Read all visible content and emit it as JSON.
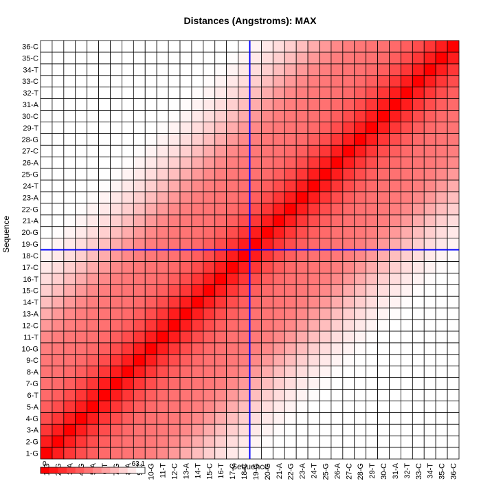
{
  "chart_data": {
    "type": "heatmap",
    "title": "Distances (Angstroms):  MAX",
    "xlabel": "Sequence",
    "ylabel": "Sequence",
    "labels": [
      "1-G",
      "2-G",
      "3-A",
      "4-G",
      "5-A",
      "6-T",
      "7-G",
      "8-A",
      "9-C",
      "10-G",
      "11-T",
      "12-C",
      "13-A",
      "14-T",
      "15-C",
      "16-T",
      "17-C",
      "18-C",
      "19-G",
      "20-G",
      "21-A",
      "22-G",
      "23-A",
      "24-T",
      "25-G",
      "26-A",
      "27-C",
      "28-G",
      "29-T",
      "30-C",
      "31-A",
      "32-T",
      "33-C",
      "34-T",
      "35-C",
      "36-C"
    ],
    "color_scale": {
      "min": 0,
      "max": 63.1,
      "min_label": "0",
      "max_label": "63.1",
      "low_color": "#ff0000",
      "high_color": "#ffffff"
    },
    "distance_model": "helix: rise 3.4 A/step, radius 10 A, twist 36 deg/step; symmetric matrix, zero on diagonal",
    "highlight": {
      "row": "18-C",
      "column": "18-C",
      "line_color": "#0000ff"
    },
    "grid": true
  }
}
